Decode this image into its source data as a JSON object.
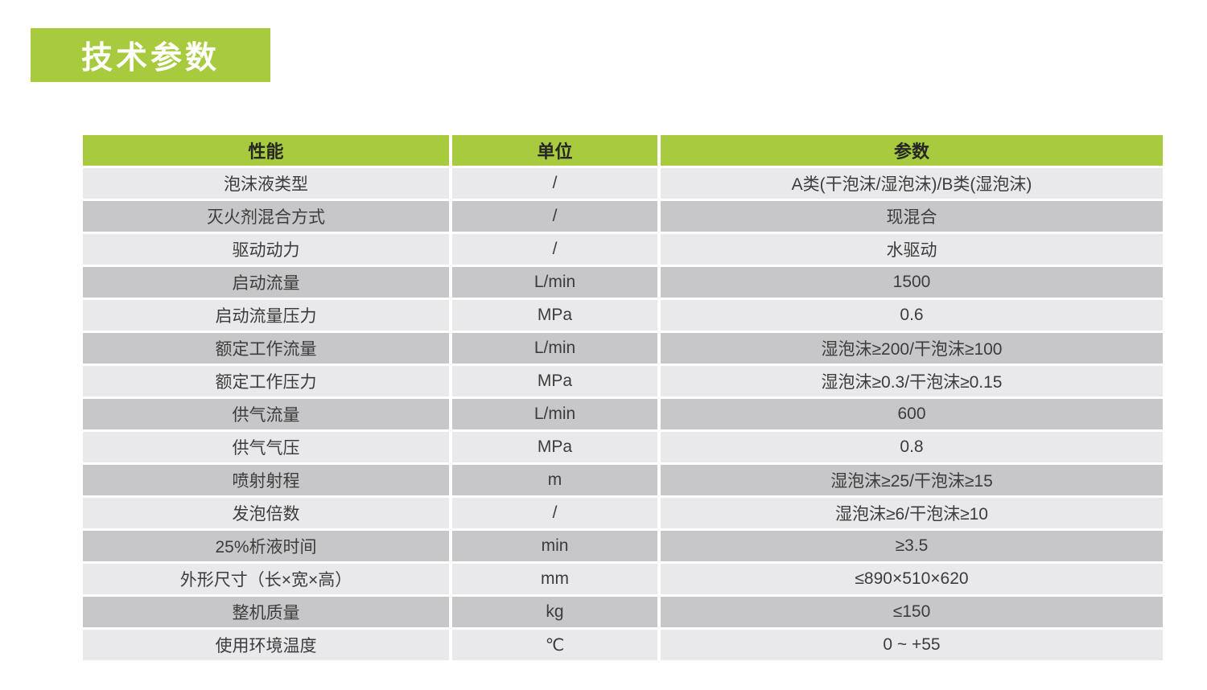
{
  "page": {
    "title": "技术参数"
  },
  "colors": {
    "accent_green": "#a7ca3e",
    "row_light": "#e9e9eb",
    "row_dark": "#c7c7c9"
  },
  "table": {
    "headers": [
      "性能",
      "单位",
      "参数"
    ],
    "rows": [
      {
        "label": "泡沫液类型",
        "unit": "/",
        "value": "A类(干泡沫/湿泡沫)/B类(湿泡沫)"
      },
      {
        "label": "灭火剂混合方式",
        "unit": "/",
        "value": "现混合"
      },
      {
        "label": "驱动动力",
        "unit": "/",
        "value": "水驱动"
      },
      {
        "label": "启动流量",
        "unit": "L/min",
        "value": "1500"
      },
      {
        "label": "启动流量压力",
        "unit": "MPa",
        "value": "0.6"
      },
      {
        "label": "额定工作流量",
        "unit": "L/min",
        "value": "湿泡沫≥200/干泡沫≥100"
      },
      {
        "label": "额定工作压力",
        "unit": "MPa",
        "value": "湿泡沫≥0.3/干泡沫≥0.15"
      },
      {
        "label": "供气流量",
        "unit": "L/min",
        "value": "600"
      },
      {
        "label": "供气气压",
        "unit": "MPa",
        "value": "0.8"
      },
      {
        "label": "喷射射程",
        "unit": "m",
        "value": "湿泡沫≥25/干泡沫≥15"
      },
      {
        "label": "发泡倍数",
        "unit": "/",
        "value": "湿泡沫≥6/干泡沫≥10"
      },
      {
        "label": "25%析液时间",
        "unit": "min",
        "value": "≥3.5"
      },
      {
        "label": "外形尺寸（长×宽×高）",
        "unit": "mm",
        "value": "≤890×510×620"
      },
      {
        "label": "整机质量",
        "unit": "kg",
        "value": "≤150"
      },
      {
        "label": "使用环境温度",
        "unit": "℃",
        "value": "0 ~ +55"
      }
    ]
  }
}
